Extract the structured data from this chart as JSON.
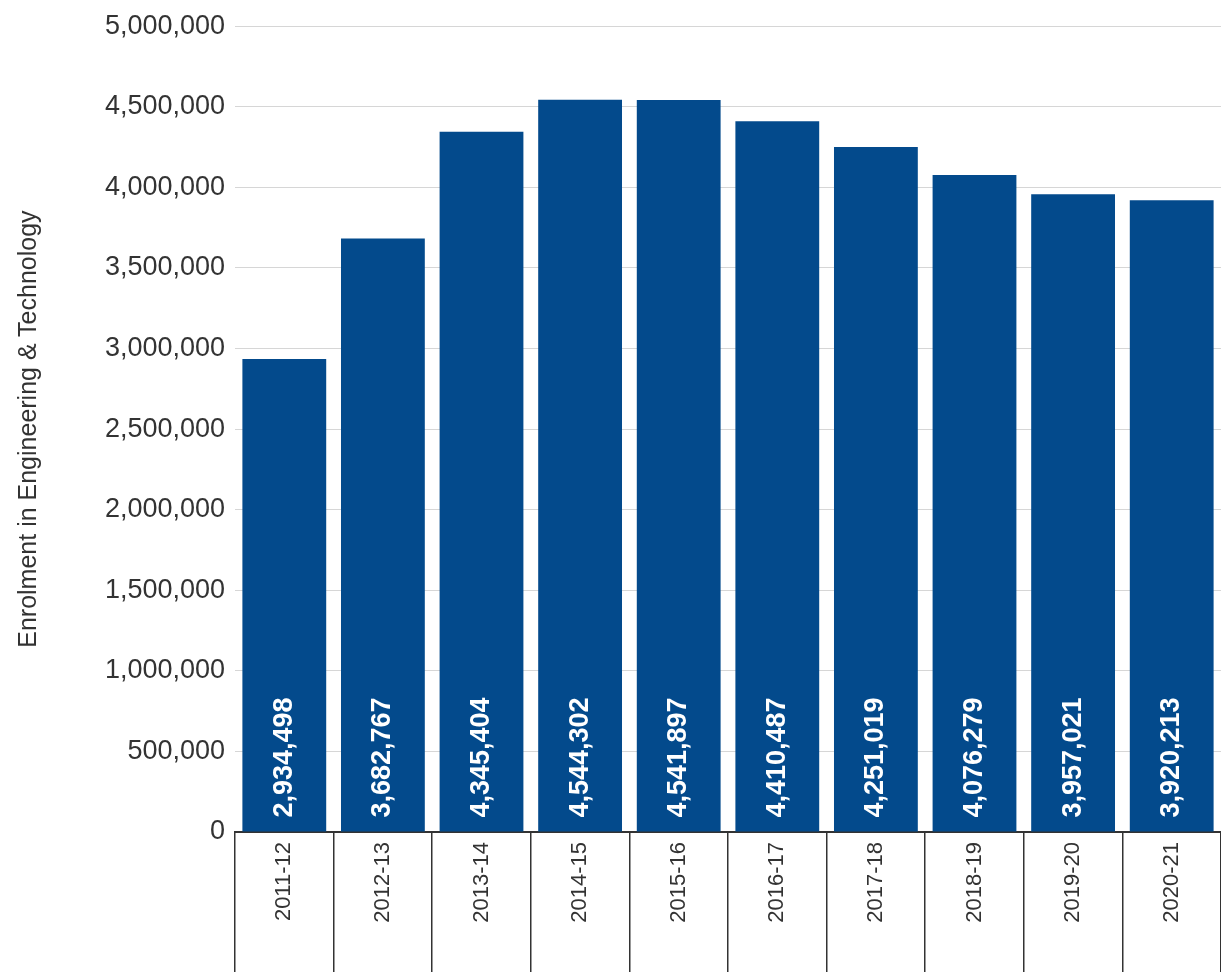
{
  "chart_data": {
    "type": "bar",
    "ylabel": "Enrolment in Engineering & Technology",
    "categories": [
      "2011-12",
      "2012-13",
      "2013-14",
      "2014-15",
      "2015-16",
      "2016-17",
      "2017-18",
      "2018-19",
      "2019-20",
      "2020-21"
    ],
    "values": [
      2934498,
      3682767,
      4345404,
      4544302,
      4541897,
      4410487,
      4251019,
      4076279,
      3957021,
      3920213
    ],
    "value_labels": [
      "2,934,498",
      "3,682,767",
      "4,345,404",
      "4,544,302",
      "4,541,897",
      "4,410,487",
      "4,251,019",
      "4,076,279",
      "3,957,021",
      "3,920,213"
    ],
    "color": "#034a8c",
    "ylim": [
      0,
      5000000
    ],
    "yticks": [
      0,
      {
        "value": 500000,
        "label": "500,000"
      },
      {
        "value": 1000000,
        "label": "1,000,000"
      },
      {
        "value": 1500000,
        "label": "1,500,000"
      },
      {
        "value": 2000000,
        "label": "2,000,000"
      },
      {
        "value": 2500000,
        "label": "2,500,000"
      },
      {
        "value": 3000000,
        "label": "3,000,000"
      },
      {
        "value": 3500000,
        "label": "3,500,000"
      },
      {
        "value": 4000000,
        "label": "4,000,000"
      },
      {
        "value": 4500000,
        "label": "4,500,000"
      },
      {
        "value": 5000000,
        "label": "5,000,000"
      }
    ],
    "grid": "y"
  }
}
